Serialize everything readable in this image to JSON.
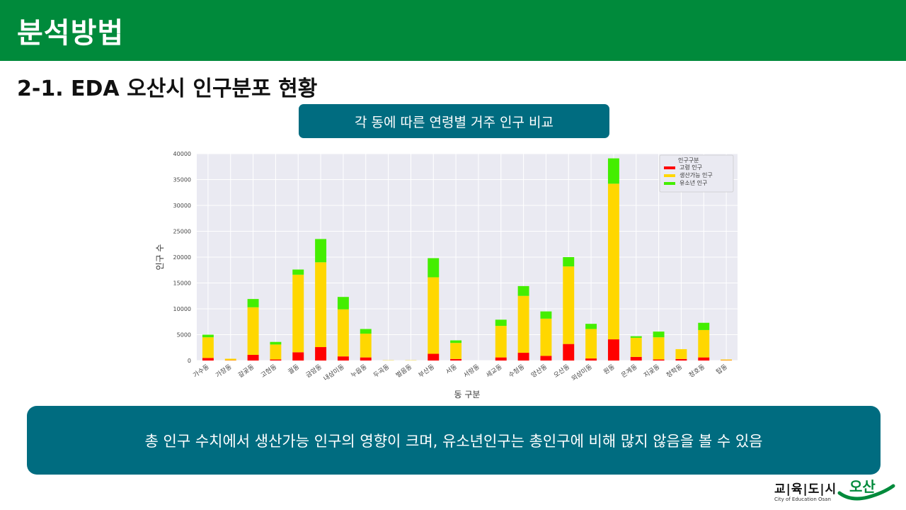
{
  "header": {
    "title": "분석방법"
  },
  "section": {
    "title": "2-1. EDA 오산시 인구분포 현황"
  },
  "chart_caption": "각 동에 따른 연령별 거주 인구 비교",
  "summary": "총 인구 수치에서 생산가능 인구의 영향이 크며, 유소년인구는 총인구에 비해 많지 않음을 볼 수 있음",
  "logo": {
    "name": "교|육|도|시",
    "subtitle": "City of Education Osan",
    "mark": "오산"
  },
  "colors": {
    "header": "#008a3b",
    "panel": "#006c80",
    "elderly": "#ff0000",
    "working": "#ffd700",
    "youth": "#44ee00",
    "plot_bg": "#eaeaf2"
  },
  "chart_data": {
    "type": "bar",
    "stacked": true,
    "xlabel": "동 구분",
    "ylabel": "인구 수",
    "ylim": [
      0,
      40000
    ],
    "yticks": [
      0,
      5000,
      10000,
      15000,
      20000,
      25000,
      30000,
      35000,
      40000
    ],
    "grid": true,
    "legend_title": "인구구분",
    "legend_position": "top-right",
    "categories": [
      "가수동",
      "가장동",
      "갈곶동",
      "고현동",
      "궐동",
      "금암동",
      "내삼미동",
      "누읍동",
      "두곡동",
      "벌음동",
      "부산동",
      "서동",
      "서랑동",
      "세교동",
      "수청동",
      "양산동",
      "오산동",
      "외삼미동",
      "원동",
      "은계동",
      "지곶동",
      "청학동",
      "청호동",
      "탑동"
    ],
    "series": [
      {
        "name": "고령 인구",
        "color": "#ff0000",
        "values": [
          500,
          50,
          1100,
          200,
          1600,
          2600,
          800,
          600,
          0,
          0,
          1300,
          300,
          0,
          600,
          1500,
          900,
          3200,
          400,
          4100,
          700,
          200,
          300,
          600,
          50
        ]
      },
      {
        "name": "생산가능 인구",
        "color": "#ffd700",
        "values": [
          4000,
          300,
          9200,
          2900,
          15000,
          16400,
          9100,
          4600,
          50,
          50,
          14800,
          3100,
          0,
          6100,
          11000,
          7200,
          15000,
          5700,
          30100,
          3700,
          4300,
          1900,
          5300,
          150
        ]
      },
      {
        "name": "유소년 인구",
        "color": "#44ee00",
        "values": [
          500,
          0,
          1600,
          500,
          1000,
          4500,
          2400,
          900,
          0,
          0,
          3700,
          500,
          0,
          1200,
          1900,
          1400,
          1800,
          1000,
          4900,
          300,
          1100,
          0,
          1400,
          0
        ]
      }
    ]
  }
}
